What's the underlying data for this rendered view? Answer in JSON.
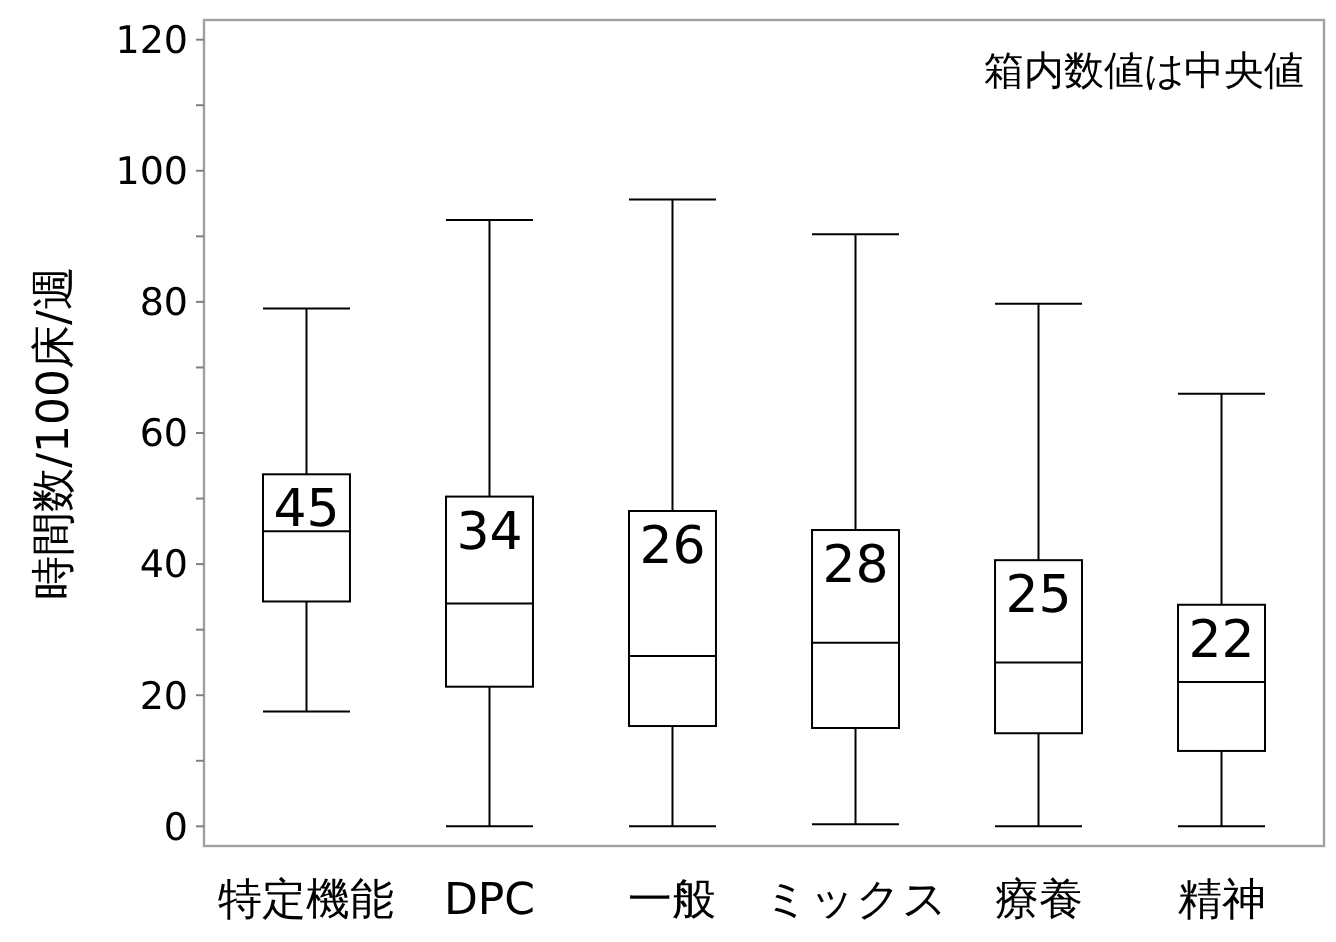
{
  "chart_data": {
    "type": "box",
    "ylabel": "時間数/100床/週",
    "categories": [
      "特定機能",
      "DPC",
      "一般",
      "ミックス",
      "療養",
      "精神"
    ],
    "boxes": [
      {
        "low": 17.5,
        "q1": 34.3,
        "median": 45,
        "q3": 53.7,
        "high": 79
      },
      {
        "low": 0,
        "q1": 21.3,
        "median": 34,
        "q3": 50.3,
        "high": 92.5
      },
      {
        "low": 0,
        "q1": 15.3,
        "median": 26,
        "q3": 48.1,
        "high": 95.6
      },
      {
        "low": 0.3,
        "q1": 15,
        "median": 28,
        "q3": 45.2,
        "high": 90.3
      },
      {
        "low": 0,
        "q1": 14.2,
        "median": 25,
        "q3": 40.6,
        "high": 79.7
      },
      {
        "low": 0,
        "q1": 11.5,
        "median": 22,
        "q3": 33.8,
        "high": 66
      }
    ],
    "color": "#000000",
    "value_labels": [
      "45",
      "34",
      "26",
      "28",
      "25",
      "22"
    ],
    "ylim": [
      -3,
      123
    ],
    "yticks": [
      0,
      {
        "value": 10,
        "label": null
      },
      20,
      {
        "value": 30,
        "label": null
      },
      40,
      {
        "value": 50,
        "label": null
      },
      60,
      {
        "value": 70,
        "label": null
      },
      80,
      {
        "value": 90,
        "label": null
      },
      100,
      {
        "value": 110,
        "label": null
      },
      120
    ],
    "annotations": [
      "箱内数値は中央値"
    ]
  }
}
